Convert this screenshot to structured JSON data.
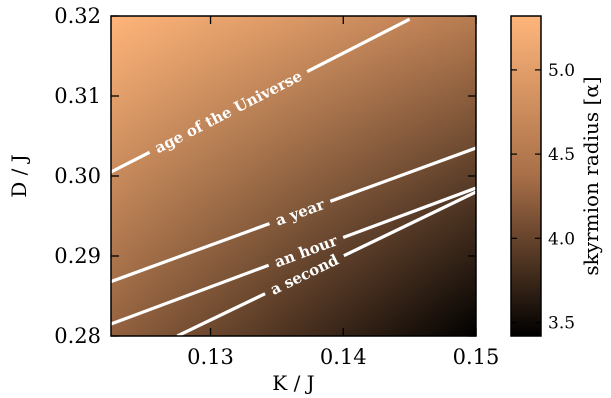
{
  "chart_data": {
    "type": "heatmap",
    "title": "",
    "xlabel": "K / J",
    "ylabel": "D / J",
    "xlim": [
      0.1225,
      0.15
    ],
    "ylim": [
      0.28,
      0.32
    ],
    "x_ticks": [
      0.13,
      0.14,
      0.15
    ],
    "x_tick_labels": [
      "0.13",
      "0.14",
      "0.15"
    ],
    "y_ticks": [
      0.28,
      0.29,
      0.3,
      0.31,
      0.32
    ],
    "y_tick_labels": [
      "0.28",
      "0.29",
      "0.30",
      "0.31",
      "0.32"
    ],
    "colorbar": {
      "label": "skyrmion radius [α]",
      "range": [
        3.42,
        5.32
      ],
      "ticks": [
        3.5,
        4.0,
        4.5,
        5.0
      ],
      "tick_labels": [
        "3.5",
        "4.0",
        "4.5",
        "5.0"
      ],
      "colors": {
        "low": "#000000",
        "mid": "#a86f48",
        "high": "#ffb57a"
      }
    },
    "field_corners": {
      "top_left": 5.32,
      "top_right": 4.55,
      "bottom_left": 4.25,
      "bottom_right": 3.42
    },
    "contours": [
      {
        "label": "age of the Universe",
        "label_at": [
          0.1315,
          0.3075
        ],
        "points": [
          [
            0.1225,
            0.3005
          ],
          [
            0.145,
            0.3196
          ]
        ]
      },
      {
        "label": "a year",
        "label_at": [
          0.1365,
          0.2965
        ],
        "points": [
          [
            0.1225,
            0.2868
          ],
          [
            0.15,
            0.3035
          ]
        ]
      },
      {
        "label": "an hour",
        "label_at": [
          0.137,
          0.2914
        ],
        "points": [
          [
            0.1225,
            0.2815
          ],
          [
            0.15,
            0.2985
          ]
        ]
      },
      {
        "label": "a second",
        "label_at": [
          0.1375,
          0.2862
        ],
        "points": [
          [
            0.1275,
            0.28
          ],
          [
            0.15,
            0.298
          ]
        ]
      }
    ]
  }
}
